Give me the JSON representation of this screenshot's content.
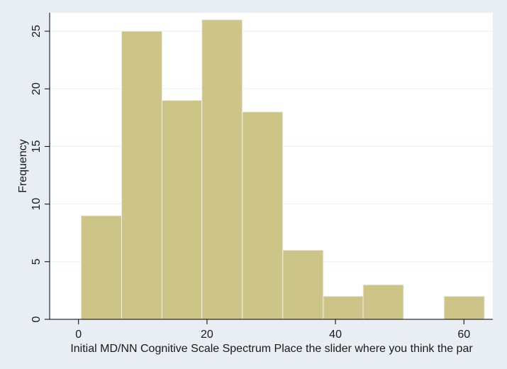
{
  "chart_data": {
    "type": "bar",
    "xlabel": "Initial MD/NN Cognitive Scale Spectrum  Place the slider where you think the par",
    "ylabel": "Frequency",
    "bins": [
      {
        "start": 0.4,
        "end": 6.7,
        "value": 9
      },
      {
        "start": 6.7,
        "end": 13.0,
        "value": 25
      },
      {
        "start": 13.0,
        "end": 19.2,
        "value": 19
      },
      {
        "start": 19.2,
        "end": 25.5,
        "value": 26
      },
      {
        "start": 25.5,
        "end": 31.8,
        "value": 18
      },
      {
        "start": 31.8,
        "end": 38.1,
        "value": 6
      },
      {
        "start": 38.1,
        "end": 44.3,
        "value": 2
      },
      {
        "start": 44.3,
        "end": 50.6,
        "value": 3
      },
      {
        "start": 50.6,
        "end": 56.9,
        "value": 0
      },
      {
        "start": 56.9,
        "end": 63.2,
        "value": 2
      }
    ],
    "x_ticks": [
      "0",
      "20",
      "40",
      "60"
    ],
    "y_ticks": [
      "0",
      "5",
      "10",
      "15",
      "20",
      "25"
    ],
    "xlim": [
      -4.5,
      64.5
    ],
    "ylim": [
      0,
      26.6
    ],
    "grid": true,
    "colors": {
      "bar_fill": "#cdc488",
      "bar_edge": "#eeeeee",
      "plot_bg": "#ffffff",
      "page_bg": "#e8eef3",
      "grid": "#eaf2f3",
      "axis": "#000000"
    }
  }
}
